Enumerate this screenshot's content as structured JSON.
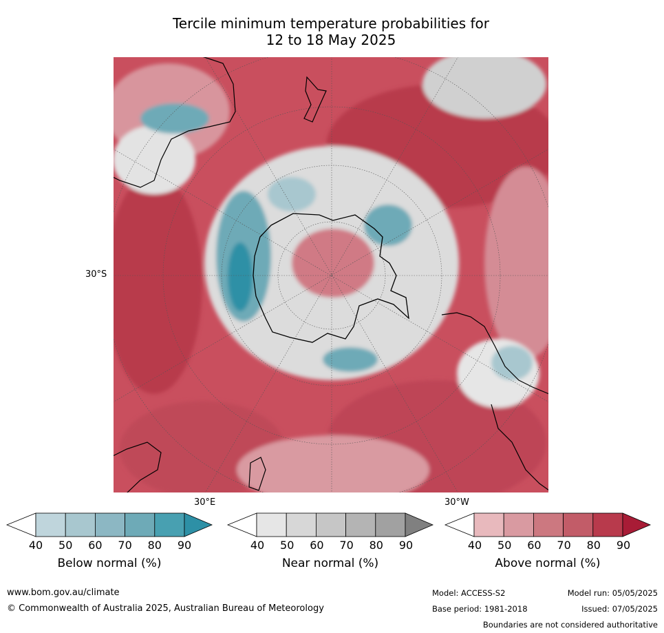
{
  "title_line1": "Tercile minimum temperature probabilities for",
  "title_line2": "12 to 18 May 2025",
  "map": {
    "projection": "south-polar",
    "lat_label_left": "30°S",
    "lon_label_1": "30°E",
    "lon_label_2": "30°W"
  },
  "legend": {
    "below": {
      "label": "Below normal (%)",
      "ticks": [
        "40",
        "50",
        "60",
        "70",
        "80",
        "90"
      ],
      "colors": [
        "#ffffff",
        "#bfd5dc",
        "#a8c7cf",
        "#8cb7c3",
        "#6eaab7",
        "#48a0b1",
        "#2d90a6"
      ]
    },
    "near": {
      "label": "Near normal (%)",
      "ticks": [
        "40",
        "50",
        "60",
        "70",
        "80",
        "90"
      ],
      "colors": [
        "#ffffff",
        "#e6e6e6",
        "#d7d7d7",
        "#c6c6c6",
        "#b4b4b4",
        "#a1a1a1",
        "#808080"
      ]
    },
    "above": {
      "label": "Above normal (%)",
      "ticks": [
        "40",
        "50",
        "60",
        "70",
        "80",
        "90"
      ],
      "colors": [
        "#ffffff",
        "#e8b9bd",
        "#d99aa1",
        "#cc7880",
        "#c25c68",
        "#b83a4c",
        "#a81c36"
      ]
    }
  },
  "footer": {
    "website": "www.bom.gov.au/climate",
    "copyright": "© Commonwealth of Australia 2025, Australian Bureau of Meteorology",
    "model": "Model: ACCESS-S2",
    "base_period": "Base period: 1981-2018",
    "model_run": "Model run: 05/05/2025",
    "issued": "Issued: 07/05/2025",
    "disclaimer": "Boundaries are not considered authoritative"
  }
}
